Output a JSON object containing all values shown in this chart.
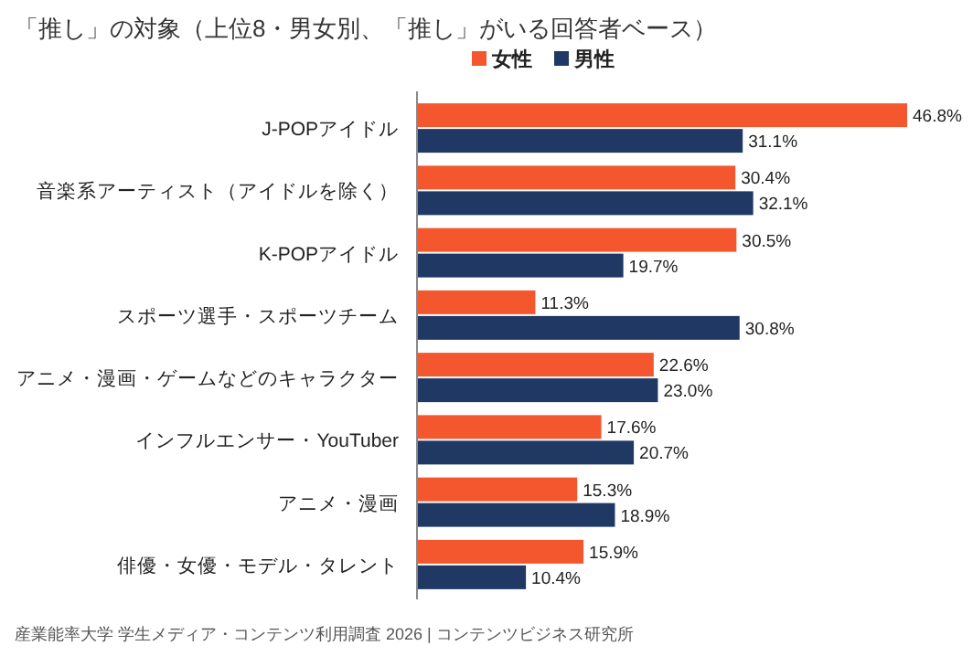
{
  "chart_data": {
    "type": "bar",
    "orientation": "horizontal",
    "title": "「推し」の対象（上位8・男女別、「推し」がいる回答者ベース）",
    "categories": [
      "J-POPアイドル",
      "音楽系アーティスト（アイドルを除く）",
      "K-POPアイドル",
      "スポーツ選手・スポーツチーム",
      "アニメ・漫画・ゲームなどのキャラクター",
      "インフルエンサー・YouTuber",
      "アニメ・漫画",
      "俳優・女優・モデル・タレント"
    ],
    "series": [
      {
        "name": "女性",
        "color": "#f4572e",
        "values": [
          46.8,
          30.4,
          30.5,
          11.3,
          22.6,
          17.6,
          15.3,
          15.9
        ],
        "value_labels": [
          "46.8%",
          "30.4%",
          "30.5%",
          "11.3%",
          "22.6%",
          "17.6%",
          "15.3%",
          "15.9%"
        ]
      },
      {
        "name": "男性",
        "color": "#1f3864",
        "values": [
          31.1,
          32.1,
          19.7,
          30.8,
          23.0,
          20.7,
          18.9,
          10.4
        ],
        "value_labels": [
          "31.1%",
          "32.1%",
          "19.7%",
          "30.8%",
          "23.0%",
          "20.7%",
          "18.9%",
          "10.4%"
        ]
      }
    ],
    "legend": "top",
    "grid": false,
    "annotations": [
      "産業能率大学  学生メディア・コンテンツ利用調査  2026  |  コンテンツビジネス研究所"
    ]
  }
}
